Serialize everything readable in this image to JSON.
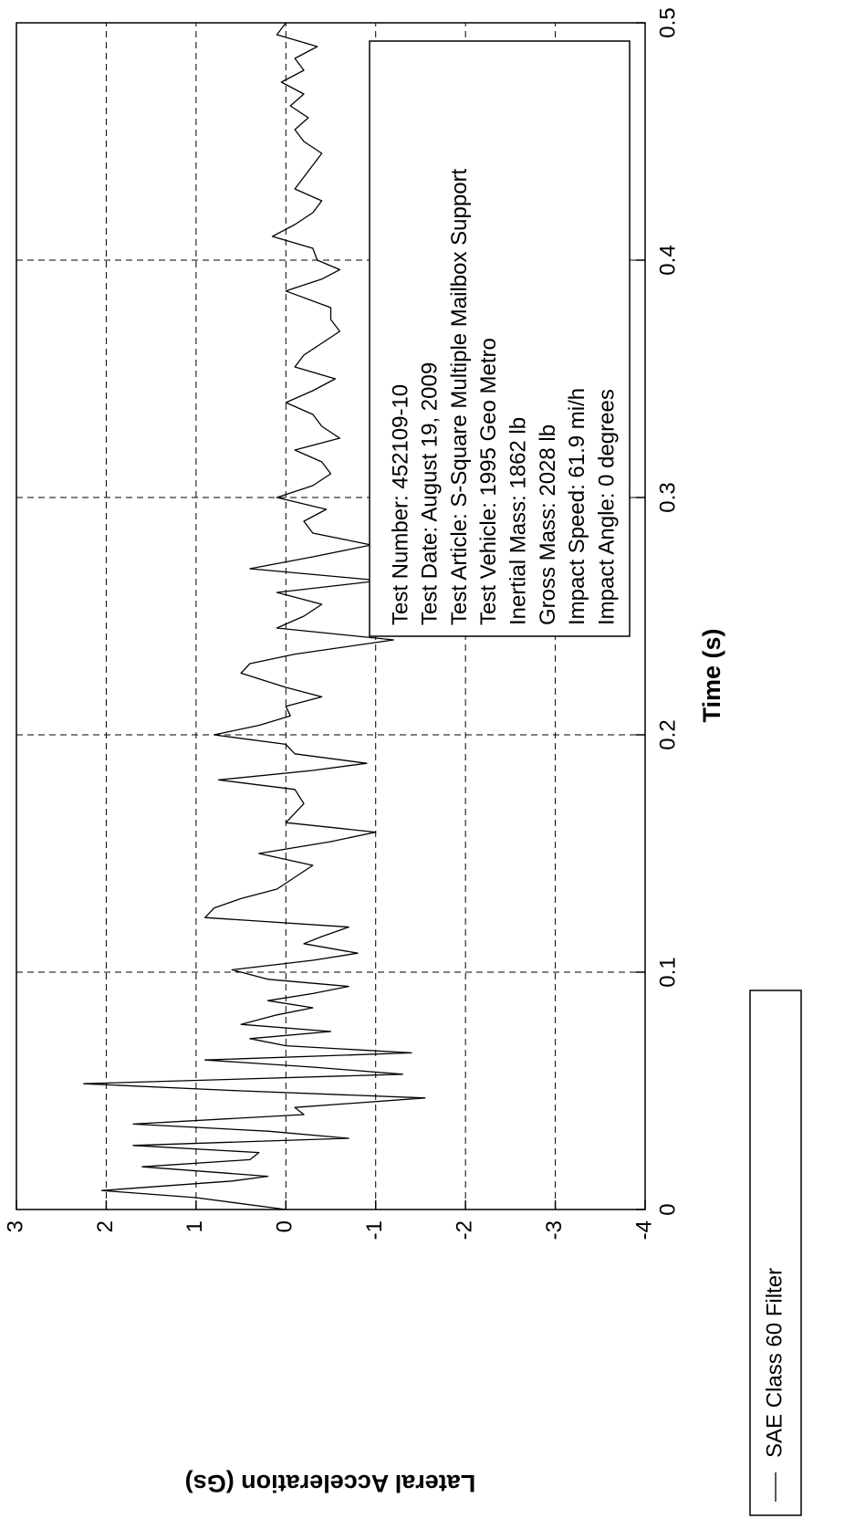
{
  "chart_data": {
    "type": "line",
    "x_label": "Time (s)",
    "y_label": "Lateral Acceleration (Gs)",
    "xlim": [
      0,
      0.5
    ],
    "xticks": [
      0,
      0.1,
      0.2,
      0.3,
      0.4,
      0.5
    ],
    "ylim": [
      -4,
      3
    ],
    "yticks": [
      3,
      2,
      1,
      0,
      -1,
      -2,
      -3,
      -4
    ],
    "grid": true,
    "annotation": [
      "Test Number: 452109-10",
      "Test Date: August 19, 2009",
      "Test Article: S-Square Multiple Mailbox Support",
      "Test Vehicle: 1995 Geo Metro",
      "Inertial Mass: 1862 lb",
      "Gross Mass: 2028 lb",
      "Impact Speed: 61.9 mi/h",
      "Impact Angle: 0 degrees"
    ],
    "x": [
      0,
      0.005,
      0.008,
      0.012,
      0.014,
      0.018,
      0.021,
      0.024,
      0.027,
      0.03,
      0.033,
      0.036,
      0.04,
      0.043,
      0.047,
      0.05,
      0.053,
      0.057,
      0.06,
      0.063,
      0.066,
      0.069,
      0.072,
      0.075,
      0.078,
      0.082,
      0.085,
      0.088,
      0.091,
      0.094,
      0.097,
      0.101,
      0.105,
      0.108,
      0.112,
      0.115,
      0.119,
      0.123,
      0.127,
      0.131,
      0.135,
      0.14,
      0.145,
      0.15,
      0.155,
      0.159,
      0.163,
      0.167,
      0.171,
      0.177,
      0.181,
      0.185,
      0.188,
      0.192,
      0.196,
      0.2,
      0.204,
      0.208,
      0.212,
      0.216,
      0.22,
      0.226,
      0.23,
      0.234,
      0.24,
      0.245,
      0.25,
      0.255,
      0.26,
      0.265,
      0.27,
      0.275,
      0.28,
      0.285,
      0.29,
      0.295,
      0.3,
      0.305,
      0.31,
      0.315,
      0.32,
      0.325,
      0.33,
      0.335,
      0.34,
      0.345,
      0.35,
      0.355,
      0.36,
      0.365,
      0.37,
      0.375,
      0.38,
      0.387,
      0.392,
      0.396,
      0.4,
      0.405,
      0.41,
      0.415,
      0.42,
      0.425,
      0.43,
      0.435,
      0.44,
      0.445,
      0.45,
      0.455,
      0.46,
      0.465,
      0.47,
      0.475,
      0.48,
      0.485,
      0.49,
      0.495,
      0.5
    ],
    "series": [
      {
        "name": "SAE Class 60 Filter",
        "color": "#000000",
        "values": [
          0,
          1.0,
          2.05,
          0.6,
          0.2,
          1.6,
          0.4,
          0.3,
          1.7,
          -0.7,
          0.2,
          1.7,
          -0.2,
          -0.1,
          -1.55,
          0.5,
          2.25,
          -1.3,
          -0.3,
          0.9,
          -1.4,
          0.0,
          0.4,
          -0.5,
          0.5,
          0.1,
          -0.3,
          0.2,
          -0.3,
          -0.7,
          0.2,
          0.6,
          -0.3,
          -0.8,
          -0.2,
          -0.4,
          -0.7,
          0.9,
          0.8,
          0.5,
          0.1,
          -0.1,
          -0.3,
          0.3,
          -0.5,
          -1.0,
          0.0,
          -0.1,
          -0.2,
          -0.1,
          0.75,
          -0.3,
          -0.9,
          -0.1,
          0.0,
          0.8,
          0.3,
          -0.05,
          0.0,
          -0.4,
          0.0,
          0.5,
          0.4,
          -0.1,
          -1.2,
          0.1,
          -0.2,
          -0.4,
          0.1,
          -1.05,
          0.4,
          -0.3,
          -0.95,
          -0.3,
          -0.2,
          -0.45,
          0.1,
          -0.3,
          -0.5,
          -0.4,
          -0.1,
          -0.6,
          -0.4,
          -0.3,
          0.0,
          -0.3,
          -0.55,
          -0.1,
          -0.2,
          -0.4,
          -0.6,
          -0.5,
          -0.5,
          0.0,
          -0.4,
          -0.6,
          -0.35,
          -0.3,
          0.15,
          -0.1,
          -0.3,
          -0.4,
          -0.1,
          -0.2,
          -0.3,
          -0.4,
          -0.2,
          -0.1,
          -0.25,
          -0.05,
          -0.2,
          0.05,
          -0.2,
          -0.1,
          -0.35,
          0.1,
          0.0
        ]
      }
    ]
  }
}
